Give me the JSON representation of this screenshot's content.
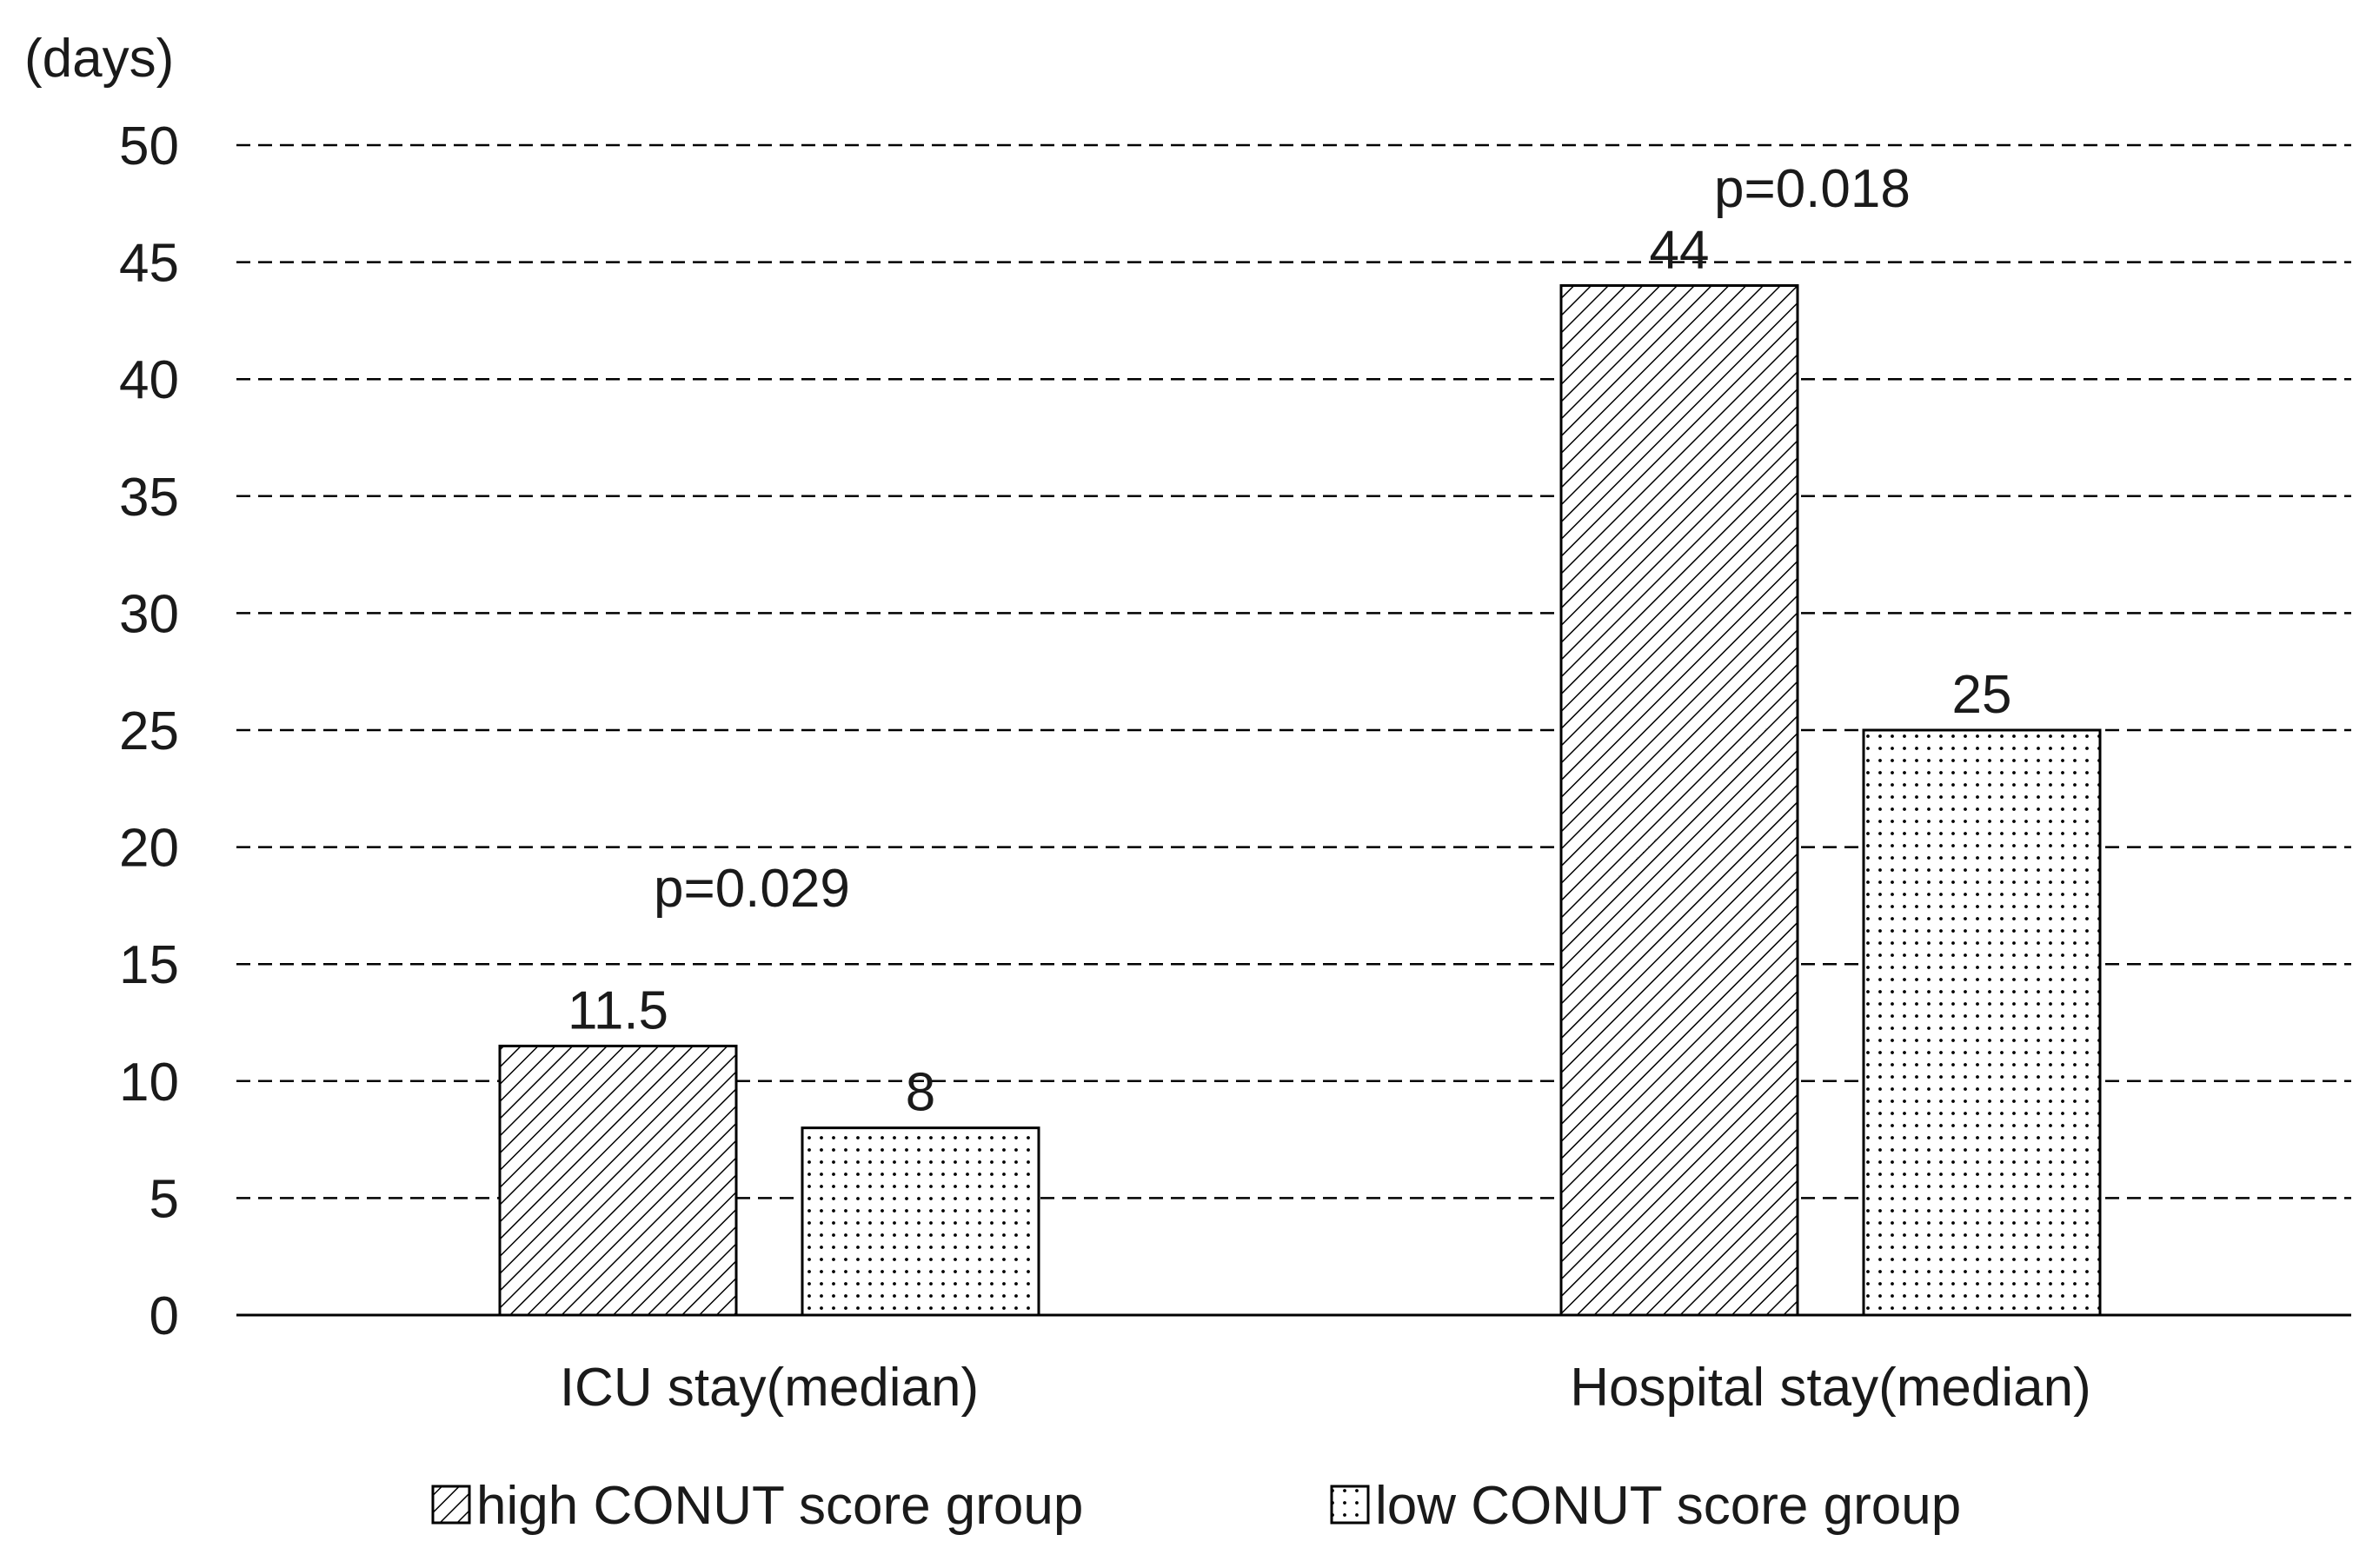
{
  "chart_data": {
    "type": "bar",
    "title": "",
    "xlabel": "",
    "ylabel": "(days)",
    "ylim": [
      0,
      50
    ],
    "yticks": [
      0,
      5,
      10,
      15,
      20,
      25,
      30,
      35,
      40,
      45,
      50
    ],
    "grid": true,
    "grid_style": "dashed",
    "legend_position": "bottom",
    "categories": [
      "ICU stay(median)",
      "Hospital stay(median)"
    ],
    "series": [
      {
        "name": "high CONUT score group",
        "pattern": "diagonal-hatch",
        "values": [
          11.5,
          44
        ]
      },
      {
        "name": "low CONUT score group",
        "pattern": "dots",
        "values": [
          8,
          25
        ]
      }
    ],
    "data_labels": [
      [
        "11.5",
        "44"
      ],
      [
        "8",
        "25"
      ]
    ],
    "annotations": [
      "p=0.029",
      "p=0.018"
    ],
    "colors": {
      "axis": "#000000",
      "grid": "#000000",
      "bar_fill": "#ffffff",
      "pattern": "#000000",
      "text": "#1a1a1a"
    }
  }
}
